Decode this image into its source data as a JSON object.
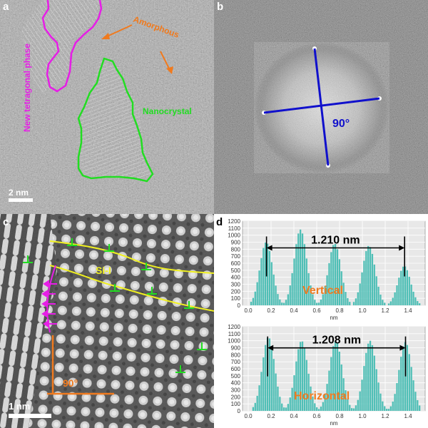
{
  "panels": {
    "a": {
      "label": "a",
      "annotations": {
        "tetragonal": "New tetragonal phase",
        "amorphous": "Amorphous",
        "nanocrystal": "Nanocrystal",
        "scale_bar": "2 nm"
      }
    },
    "b": {
      "label": "b",
      "angle": "90°"
    },
    "c": {
      "label": "c",
      "si_label": "Si-I",
      "angle": "90°",
      "scale_bar": "1 nm"
    },
    "d": {
      "label": "d"
    }
  },
  "colors": {
    "magenta": "#e61ee6",
    "orange": "#f07a1e",
    "green": "#22dd22",
    "blue": "#1010cc",
    "yellow": "#f0f020",
    "bar": "#4fbfb6",
    "plot_bg": "#e8e8e8"
  },
  "chart_data": [
    {
      "type": "bar",
      "annotation": "Vertical",
      "measurement": "1.210 nm",
      "xlabel": "nm",
      "xlim": [
        -0.05,
        1.55
      ],
      "ylim": [
        0,
        1200
      ],
      "x_ticks": [
        "0.0",
        "0.2",
        "0.4",
        "0.6",
        "0.8",
        "1.0",
        "1.2",
        "1.4"
      ],
      "y_ticks": [
        "0",
        "100",
        "200",
        "300",
        "400",
        "500",
        "600",
        "700",
        "800",
        "900",
        "1000",
        "1100",
        "1200"
      ],
      "peaks": [
        {
          "x": 0.15,
          "height": 900
        },
        {
          "x": 0.45,
          "height": 1080
        },
        {
          "x": 0.75,
          "height": 880
        },
        {
          "x": 1.05,
          "height": 850
        },
        {
          "x": 1.36,
          "height": 560
        }
      ],
      "measure_range": [
        0.16,
        1.37
      ]
    },
    {
      "type": "bar",
      "annotation": "Horizontal",
      "measurement": "1.208 nm",
      "xlabel": "nm",
      "xlim": [
        -0.05,
        1.55
      ],
      "ylim": [
        0,
        1200
      ],
      "x_ticks": [
        "0.0",
        "0.2",
        "0.4",
        "0.6",
        "0.8",
        "1.0",
        "1.2",
        "1.4"
      ],
      "y_ticks": [
        "0",
        "100",
        "200",
        "300",
        "400",
        "500",
        "600",
        "700",
        "800",
        "900",
        "1000",
        "1100",
        "1200"
      ],
      "peaks": [
        {
          "x": 0.17,
          "height": 1050
        },
        {
          "x": 0.46,
          "height": 1000
        },
        {
          "x": 0.76,
          "height": 1000
        },
        {
          "x": 1.06,
          "height": 1000
        },
        {
          "x": 1.37,
          "height": 980
        }
      ],
      "measure_range": [
        0.17,
        1.378
      ]
    }
  ]
}
